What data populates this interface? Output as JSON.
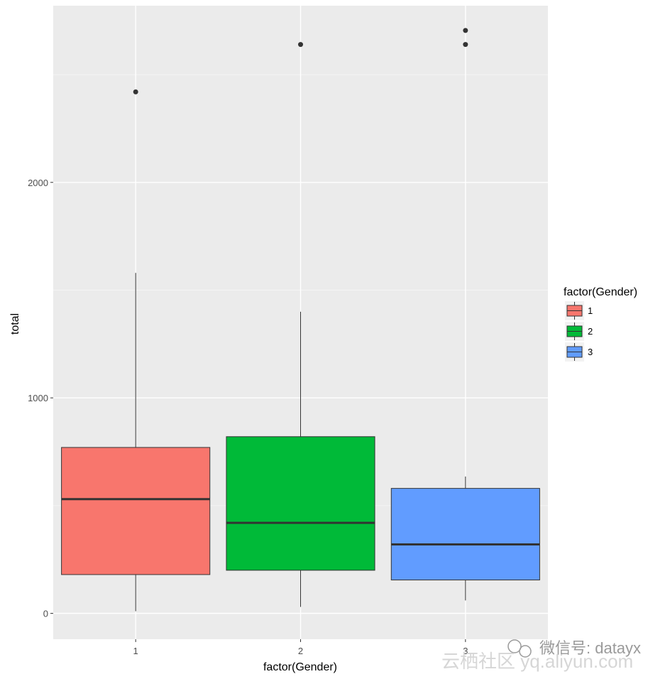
{
  "chart_data": {
    "type": "box",
    "x": [
      "1",
      "2",
      "3"
    ],
    "xlabel": "factor(Gender)",
    "ylabel": "total",
    "ylim": [
      -120,
      2820
    ],
    "yticks": [
      0,
      1000,
      2000
    ],
    "grid": true,
    "legend": {
      "title": "factor(Gender)",
      "position": "right",
      "entries": [
        "1",
        "2",
        "3"
      ]
    },
    "series": [
      {
        "group": "1",
        "color": "#F8766D",
        "whisker_low": 10,
        "q1": 180,
        "median": 530,
        "q3": 770,
        "whisker_high": 1580,
        "outliers": [
          2420
        ]
      },
      {
        "group": "2",
        "color": "#00BA38",
        "whisker_low": 30,
        "q1": 200,
        "median": 420,
        "q3": 820,
        "whisker_high": 1400,
        "outliers": [
          2640
        ]
      },
      {
        "group": "3",
        "color": "#619CFF",
        "whisker_low": 60,
        "q1": 155,
        "median": 320,
        "q3": 580,
        "whisker_high": 635,
        "outliers": [
          2640,
          2705
        ]
      }
    ]
  },
  "watermark": {
    "text": "微信号: datayx",
    "subtext": "云栖社区 yq.aliyun.com"
  }
}
